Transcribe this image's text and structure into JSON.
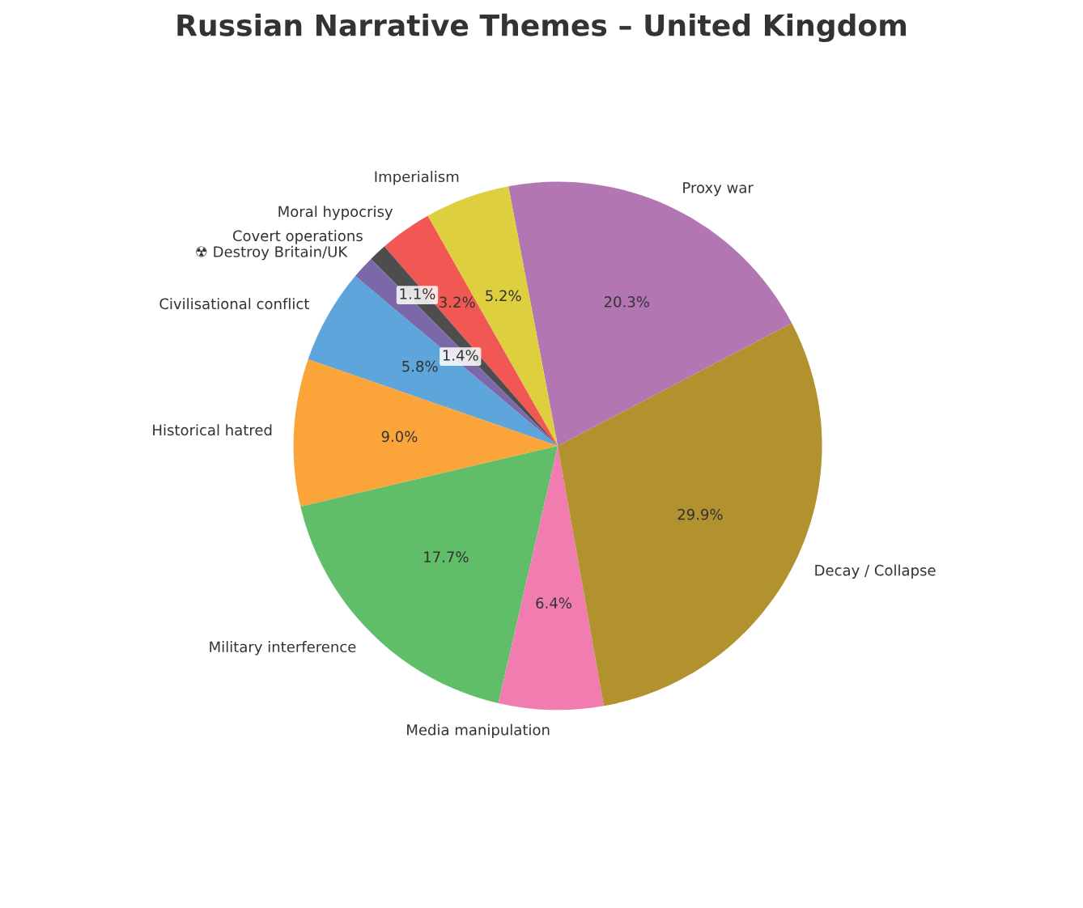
{
  "chart_data": {
    "type": "pie",
    "title": "Russian Narrative Themes – United Kingdom",
    "categories": [
      "Civilisational conflict",
      "Historical hatred",
      "Military interference",
      "Media manipulation",
      "Decay / Collapse",
      "Proxy war",
      "Imperialism",
      "Moral hypocrisy",
      "Covert operations",
      "☢ Destroy Britain/UK"
    ],
    "values": [
      5.8,
      9.0,
      17.7,
      6.4,
      29.9,
      20.3,
      5.2,
      3.2,
      1.1,
      1.4
    ],
    "colors": [
      "#5da5da",
      "#faa43a",
      "#60bd68",
      "#f17cb0",
      "#b2912f",
      "#b276b2",
      "#decf3f",
      "#f15854",
      "#4d4d4d",
      "#7b68a8"
    ],
    "value_labels": [
      "5.8%",
      "9.0%",
      "17.7%",
      "6.4%",
      "29.9%",
      "20.3%",
      "5.2%",
      "3.2%",
      "1.1%",
      "1.4%"
    ]
  }
}
